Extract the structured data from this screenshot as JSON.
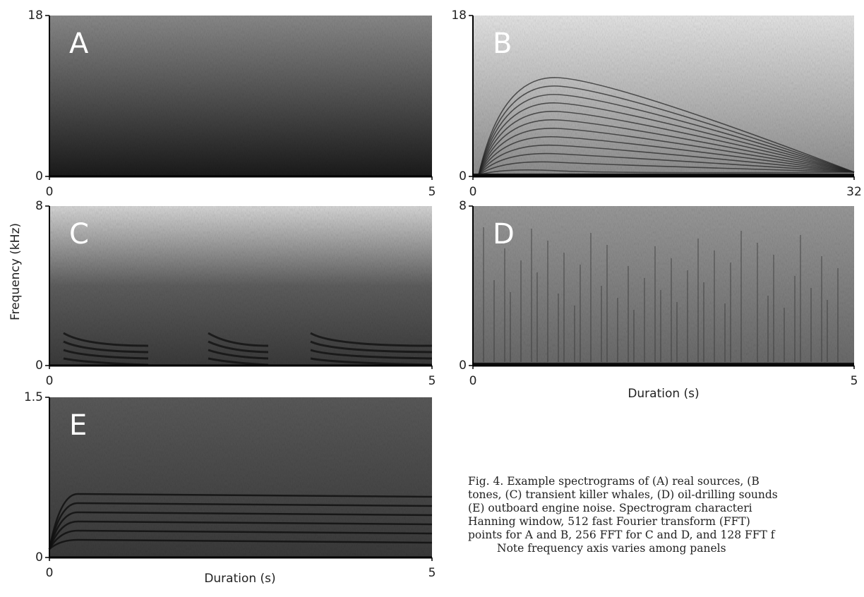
{
  "figure": {
    "panels": [
      {
        "label": "A",
        "xticks": [
          0,
          5
        ],
        "yticks": [
          0,
          18
        ]
      },
      {
        "label": "B",
        "xticks": [
          0,
          32
        ],
        "yticks": [
          0,
          18
        ]
      },
      {
        "label": "C",
        "xticks": [
          0,
          5
        ],
        "yticks": [
          0,
          8
        ]
      },
      {
        "label": "D",
        "xticks": [
          0,
          5
        ],
        "yticks": [
          0,
          8
        ]
      },
      {
        "label": "E",
        "xticks": [
          0,
          5
        ],
        "yticks": [
          0,
          1.5
        ]
      }
    ],
    "y_axis_label": "Frequency (kHz)",
    "x_axis_labels": [
      "Duration (s)",
      "Duration (s)"
    ],
    "caption": [
      "Fig. 4. Example spectrograms of (A) real sources, (B",
      "tones, (C) transient killer whales, (D) oil-drilling sounds",
      "(E) outboard engine noise. Spectrogram characteri",
      "Hanning window, 512 fast Fourier transform (FFT)",
      "points for A and B, 256 FFT for C and D, and 128 FFT f",
      "Note frequency axis varies among panels"
    ]
  }
}
